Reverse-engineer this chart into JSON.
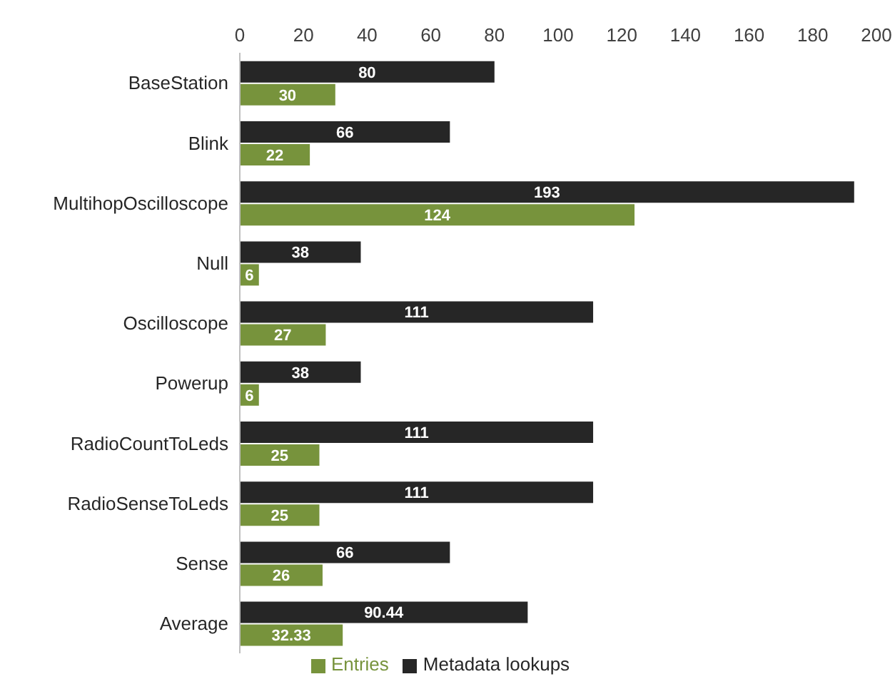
{
  "chart_data": {
    "type": "bar",
    "orientation": "horizontal",
    "categories": [
      "BaseStation",
      "Blink",
      "MultihopOscilloscope",
      "Null",
      "Oscilloscope",
      "Powerup",
      "RadioCountToLeds",
      "RadioSenseToLeds",
      "Sense",
      "Average"
    ],
    "series": [
      {
        "name": "Metadata lookups",
        "color": "#262626",
        "values": [
          80,
          66,
          193,
          38,
          111,
          38,
          111,
          111,
          66,
          90.44
        ]
      },
      {
        "name": "Entries",
        "color": "#77933c",
        "values": [
          30,
          22,
          124,
          6,
          27,
          6,
          25,
          25,
          26,
          32.33
        ]
      }
    ],
    "xlim": [
      0,
      200
    ],
    "xticks": [
      0,
      20,
      40,
      60,
      80,
      100,
      120,
      140,
      160,
      180,
      200
    ],
    "data_labels": true,
    "legend": "bottom",
    "grid": false
  }
}
